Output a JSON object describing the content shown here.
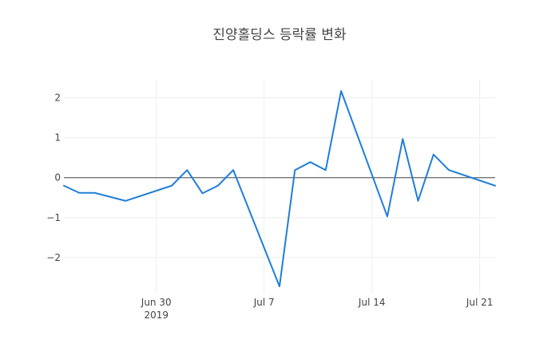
{
  "chart_data": {
    "type": "line",
    "title": "진양홀딩스 등락률 변화",
    "xlabel": "",
    "ylabel": "",
    "x_type": "date",
    "xlim": [
      "2019-06-24",
      "2019-07-22"
    ],
    "ylim": [
      -2.9,
      2.45
    ],
    "y_ticks": [
      2,
      1,
      0,
      -1,
      -2
    ],
    "y_tick_labels": [
      "2",
      "1",
      "0",
      "−1",
      "−2"
    ],
    "x_ticks": [
      {
        "date": "2019-06-30",
        "label": "Jun 30",
        "sublabel": "2019"
      },
      {
        "date": "2019-07-07",
        "label": "Jul 7",
        "sublabel": ""
      },
      {
        "date": "2019-07-14",
        "label": "Jul 14",
        "sublabel": ""
      },
      {
        "date": "2019-07-21",
        "label": "Jul 21",
        "sublabel": ""
      }
    ],
    "grid": true,
    "color": "#1f7ed8",
    "series": [
      {
        "x": [
          "2019-06-24",
          "2019-06-25",
          "2019-06-26",
          "2019-06-28",
          "2019-07-01",
          "2019-07-02",
          "2019-07-03",
          "2019-07-04",
          "2019-07-05",
          "2019-07-08",
          "2019-07-09",
          "2019-07-10",
          "2019-07-11",
          "2019-07-12",
          "2019-07-15",
          "2019-07-16",
          "2019-07-17",
          "2019-07-18",
          "2019-07-19",
          "2019-07-22"
        ],
        "y": [
          -0.2,
          -0.38,
          -0.38,
          -0.58,
          -0.2,
          0.19,
          -0.39,
          -0.2,
          0.19,
          -2.72,
          0.19,
          0.39,
          0.19,
          2.17,
          -0.97,
          0.97,
          -0.58,
          0.58,
          0.19,
          -0.2
        ]
      }
    ]
  }
}
